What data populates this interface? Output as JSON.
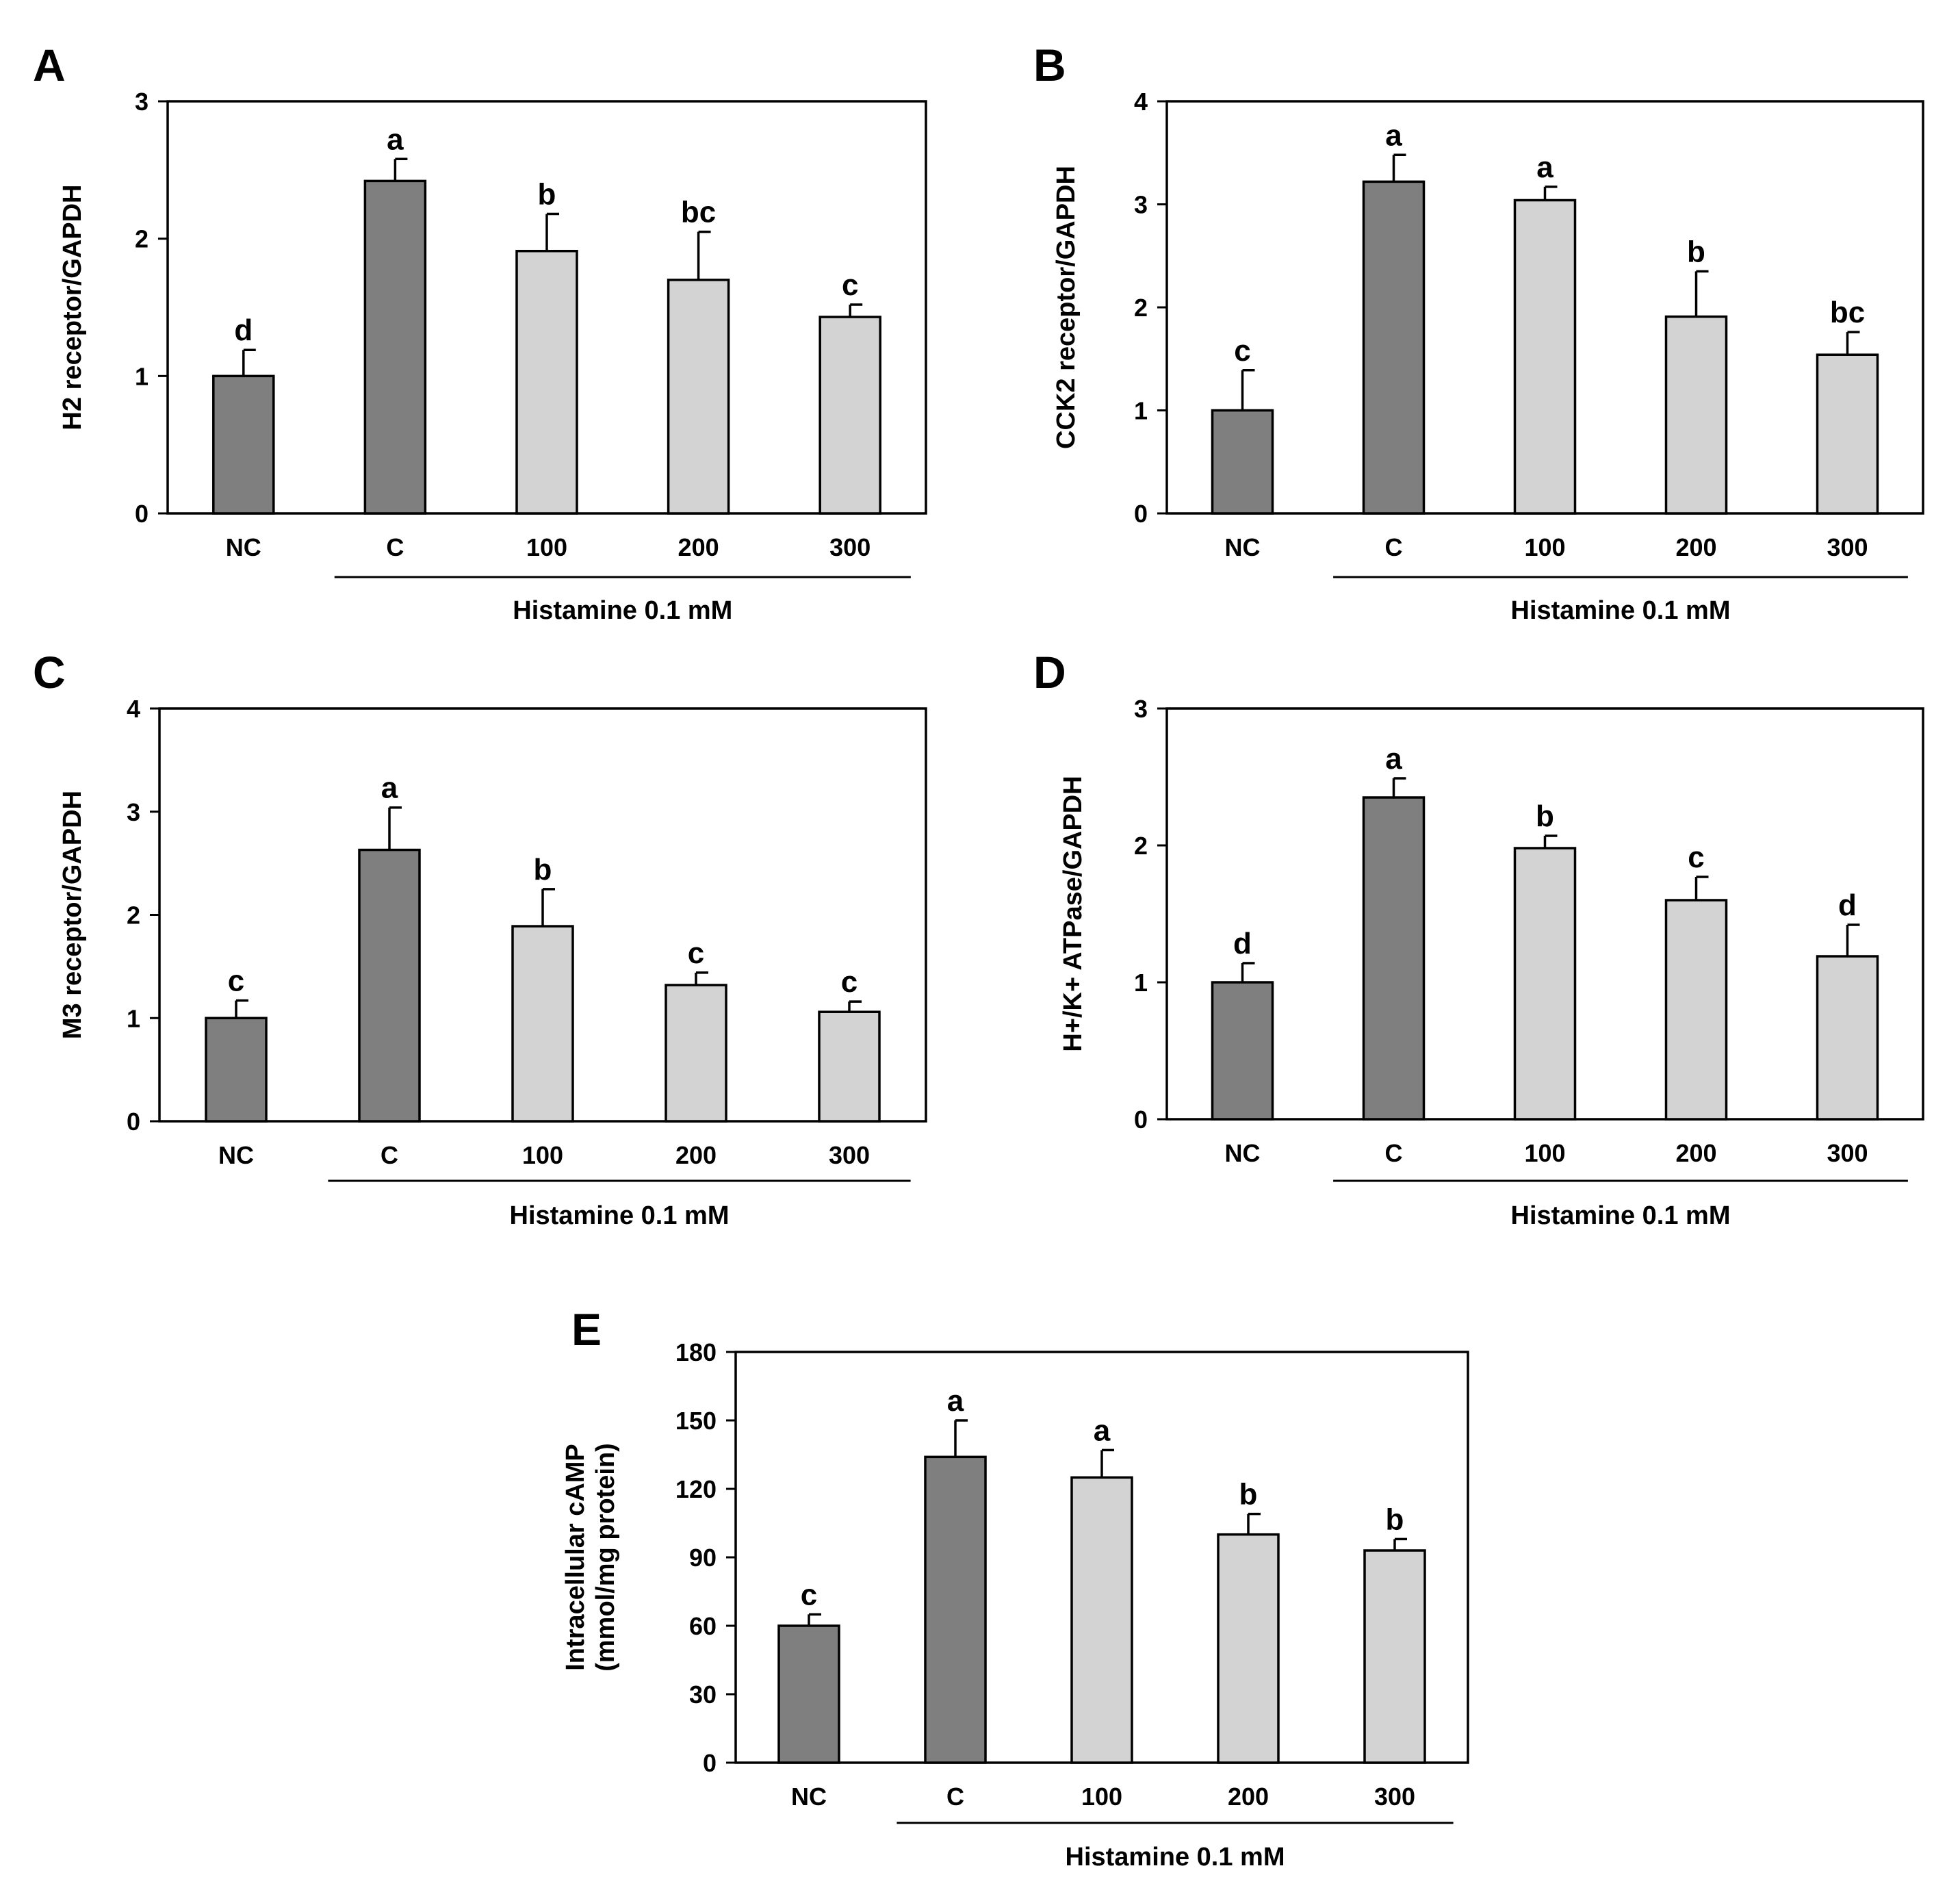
{
  "figure": {
    "bar_colors": {
      "control": "#7f7f7f",
      "treatment": "#d3d3d3"
    },
    "categories": [
      "NC",
      "C",
      "100",
      "200",
      "300"
    ],
    "group_bracket_label": "Histamine 0.1 mM"
  },
  "chart_data": [
    {
      "panel": "A",
      "type": "bar",
      "categories": [
        "NC",
        "C",
        "100",
        "200",
        "300"
      ],
      "values": [
        1.0,
        2.42,
        1.91,
        1.7,
        1.43
      ],
      "errors": [
        0.19,
        0.16,
        0.27,
        0.35,
        0.09
      ],
      "significance": [
        "d",
        "a",
        "b",
        "bc",
        "c"
      ],
      "ylabel": "H2 receptor/GAPDH",
      "ylabel_lines": [
        "H2 receptor/GAPDH"
      ],
      "ylim": [
        0,
        3
      ],
      "yticks": [
        0,
        1,
        2,
        3
      ],
      "xlabel": "Histamine 0.1 mM"
    },
    {
      "panel": "B",
      "type": "bar",
      "categories": [
        "NC",
        "C",
        "100",
        "200",
        "300"
      ],
      "values": [
        1.0,
        3.22,
        3.04,
        1.91,
        1.54
      ],
      "errors": [
        0.39,
        0.26,
        0.13,
        0.44,
        0.22
      ],
      "significance": [
        "c",
        "a",
        "a",
        "b",
        "bc"
      ],
      "ylabel": "CCK2 receptor/GAPDH",
      "ylabel_lines": [
        "CCK2 receptor/GAPDH"
      ],
      "ylim": [
        0,
        4
      ],
      "yticks": [
        0,
        1,
        2,
        3,
        4
      ],
      "xlabel": "Histamine 0.1 mM"
    },
    {
      "panel": "C",
      "type": "bar",
      "categories": [
        "NC",
        "C",
        "100",
        "200",
        "300"
      ],
      "values": [
        1.0,
        2.63,
        1.89,
        1.32,
        1.06
      ],
      "errors": [
        0.17,
        0.41,
        0.36,
        0.12,
        0.1
      ],
      "significance": [
        "c",
        "a",
        "b",
        "c",
        "c"
      ],
      "ylabel": "M3 receptor/GAPDH",
      "ylabel_lines": [
        "M3 receptor/GAPDH"
      ],
      "ylim": [
        0,
        4
      ],
      "yticks": [
        0,
        1,
        2,
        3,
        4
      ],
      "xlabel": "Histamine 0.1 mM"
    },
    {
      "panel": "D",
      "type": "bar",
      "categories": [
        "NC",
        "C",
        "100",
        "200",
        "300"
      ],
      "values": [
        1.0,
        2.35,
        1.98,
        1.6,
        1.19
      ],
      "errors": [
        0.14,
        0.14,
        0.09,
        0.17,
        0.23
      ],
      "significance": [
        "d",
        "a",
        "b",
        "c",
        "d"
      ],
      "ylabel": "H+/K+ ATPase/GAPDH",
      "ylabel_lines": [
        "H+/K+ ATPase/GAPDH"
      ],
      "ylim": [
        0,
        3
      ],
      "yticks": [
        0,
        1,
        2,
        3
      ],
      "xlabel": "Histamine 0.1 mM"
    },
    {
      "panel": "E",
      "type": "bar",
      "categories": [
        "NC",
        "C",
        "100",
        "200",
        "300"
      ],
      "values": [
        60,
        134,
        125,
        100,
        93
      ],
      "errors": [
        5,
        16,
        12,
        9,
        5
      ],
      "significance": [
        "c",
        "a",
        "a",
        "b",
        "b"
      ],
      "ylabel": "Intracellular cAMP (mmol/mg protein)",
      "ylabel_lines": [
        "Intracellular cAMP",
        "(mmol/mg protein)"
      ],
      "ylim": [
        0,
        180
      ],
      "yticks": [
        0,
        30,
        60,
        90,
        120,
        150,
        180
      ],
      "xlabel": "Histamine 0.1 mM"
    }
  ]
}
